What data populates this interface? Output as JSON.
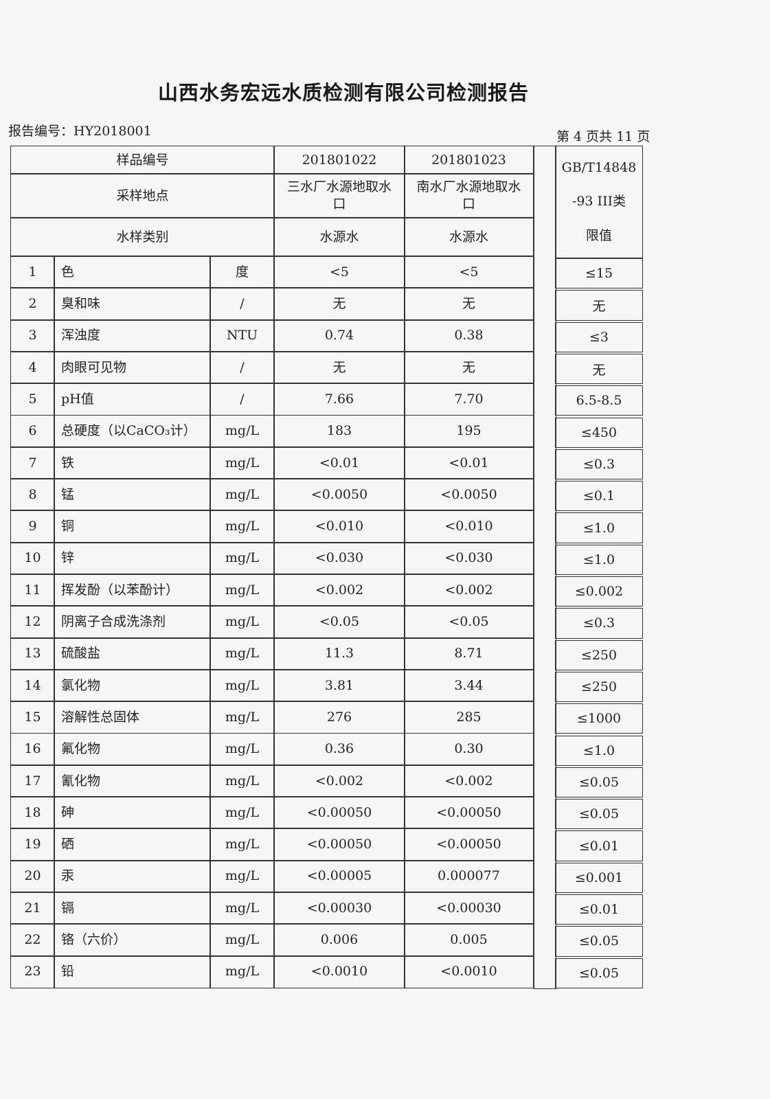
{
  "title": "山西水务宏远水质检测有限公司检测报告",
  "report_no": "报告编号：HY2018001",
  "page_info": "第 4 页共 11 页",
  "header": {
    "sample_no_label": "样品编号",
    "location_label": "采样地点",
    "type_label": "水样类别",
    "samples": [
      {
        "no": "201801022",
        "location": "三水厂水源地取水口",
        "type": "水源水"
      },
      {
        "no": "201801023",
        "location": "南水厂水源地取水口",
        "type": "水源水"
      }
    ],
    "standard": {
      "line1": "GB/T14848",
      "line2": "-93 III类",
      "line3": "限值"
    }
  },
  "rows": [
    {
      "n": "1",
      "item": "色",
      "unit": "度",
      "s1": "<5",
      "s2": "<5",
      "std": "≤15"
    },
    {
      "n": "2",
      "item": "臭和味",
      "unit": "/",
      "s1": "无",
      "s2": "无",
      "std": "无"
    },
    {
      "n": "3",
      "item": "浑浊度",
      "unit": "NTU",
      "s1": "0.74",
      "s2": "0.38",
      "std": "≤3"
    },
    {
      "n": "4",
      "item": "肉眼可见物",
      "unit": "/",
      "s1": "无",
      "s2": "无",
      "std": "无"
    },
    {
      "n": "5",
      "item": "pH值",
      "unit": "/",
      "s1": "7.66",
      "s2": "7.70",
      "std": "6.5-8.5"
    },
    {
      "n": "6",
      "item": "总硬度（以CaCO₃计）",
      "unit": "mg/L",
      "s1": "183",
      "s2": "195",
      "std": "≤450"
    },
    {
      "n": "7",
      "item": "铁",
      "unit": "mg/L",
      "s1": "<0.01",
      "s2": "<0.01",
      "std": "≤0.3"
    },
    {
      "n": "8",
      "item": "锰",
      "unit": "mg/L",
      "s1": "<0.0050",
      "s2": "<0.0050",
      "std": "≤0.1"
    },
    {
      "n": "9",
      "item": "铜",
      "unit": "mg/L",
      "s1": "<0.010",
      "s2": "<0.010",
      "std": "≤1.0"
    },
    {
      "n": "10",
      "item": "锌",
      "unit": "mg/L",
      "s1": "<0.030",
      "s2": "<0.030",
      "std": "≤1.0"
    },
    {
      "n": "11",
      "item": "挥发酚（以苯酚计）",
      "unit": "mg/L",
      "s1": "<0.002",
      "s2": "<0.002",
      "std": "≤0.002"
    },
    {
      "n": "12",
      "item": "阴离子合成洗涤剂",
      "unit": "mg/L",
      "s1": "<0.05",
      "s2": "<0.05",
      "std": "≤0.3"
    },
    {
      "n": "13",
      "item": "硫酸盐",
      "unit": "mg/L",
      "s1": "11.3",
      "s2": "8.71",
      "std": "≤250"
    },
    {
      "n": "14",
      "item": "氯化物",
      "unit": "mg/L",
      "s1": "3.81",
      "s2": "3.44",
      "std": "≤250"
    },
    {
      "n": "15",
      "item": "溶解性总固体",
      "unit": "mg/L",
      "s1": "276",
      "s2": "285",
      "std": "≤1000"
    },
    {
      "n": "16",
      "item": "氟化物",
      "unit": "mg/L",
      "s1": "0.36",
      "s2": "0.30",
      "std": "≤1.0"
    },
    {
      "n": "17",
      "item": "氰化物",
      "unit": "mg/L",
      "s1": "<0.002",
      "s2": "<0.002",
      "std": "≤0.05"
    },
    {
      "n": "18",
      "item": "砷",
      "unit": "mg/L",
      "s1": "<0.00050",
      "s2": "<0.00050",
      "std": "≤0.05"
    },
    {
      "n": "19",
      "item": "硒",
      "unit": "mg/L",
      "s1": "<0.00050",
      "s2": "<0.00050",
      "std": "≤0.01"
    },
    {
      "n": "20",
      "item": "汞",
      "unit": "mg/L",
      "s1": "<0.00005",
      "s2": "0.000077",
      "std": "≤0.001"
    },
    {
      "n": "21",
      "item": "镉",
      "unit": "mg/L",
      "s1": "<0.00030",
      "s2": "<0.00030",
      "std": "≤0.01"
    },
    {
      "n": "22",
      "item": "铬（六价）",
      "unit": "mg/L",
      "s1": "0.006",
      "s2": "0.005",
      "std": "≤0.05"
    },
    {
      "n": "23",
      "item": "铅",
      "unit": "mg/L",
      "s1": "<0.0010",
      "s2": "<0.0010",
      "std": "≤0.05"
    }
  ]
}
